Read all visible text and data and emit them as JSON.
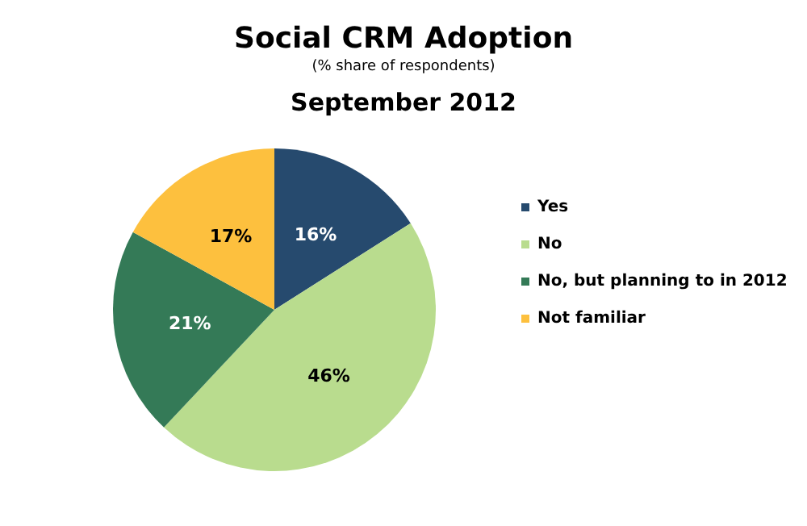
{
  "chart_data": {
    "type": "pie",
    "title": "Social CRM Adoption",
    "subtitle": "(% share of respondents)",
    "annotations": [
      "September 2012"
    ],
    "categories": [
      "Yes",
      "No",
      "No, but planning to in 2012",
      "Not familiar"
    ],
    "values": [
      16,
      46,
      21,
      17
    ],
    "colors": [
      "#264a6e",
      "#b9dc8e",
      "#347a57",
      "#fdc03e"
    ],
    "value_labels": [
      "16%",
      "46%",
      "21%",
      "17%"
    ],
    "legend": "right"
  }
}
